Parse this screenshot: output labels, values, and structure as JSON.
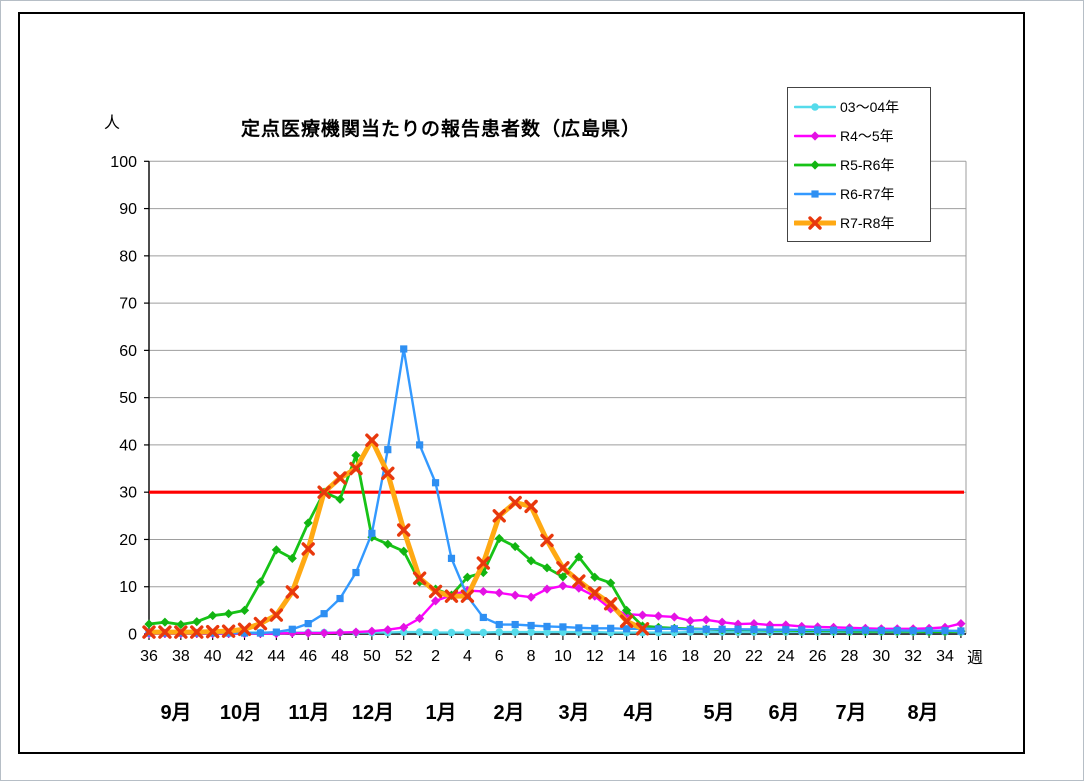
{
  "chart_data": {
    "type": "line",
    "title": "定点医療機関当たりの報告患者数（広島県）",
    "y_axis": {
      "label": "人",
      "min": 0,
      "max": 100,
      "step": 10,
      "grid": true
    },
    "x_axis": {
      "label": "週",
      "weeks": [
        36,
        37,
        38,
        39,
        40,
        41,
        42,
        43,
        44,
        45,
        46,
        47,
        48,
        49,
        50,
        51,
        52,
        1,
        2,
        3,
        4,
        5,
        6,
        7,
        8,
        9,
        10,
        11,
        12,
        13,
        14,
        15,
        16,
        17,
        18,
        19,
        20,
        21,
        22,
        23,
        24,
        25,
        26,
        27,
        28,
        29,
        30,
        31,
        32,
        33,
        34,
        35
      ],
      "labeled_every": 2,
      "months": [
        "9月",
        "10月",
        "11月",
        "12月",
        "1月",
        "2月",
        "3月",
        "4月",
        "5月",
        "6月",
        "7月",
        "8月"
      ]
    },
    "threshold": {
      "value": 30,
      "color": "#FF0000"
    },
    "legend_position": "top-right",
    "series": [
      {
        "name": "03〜04年",
        "color": "#55DBEB",
        "marker": "circle",
        "marker_color": "#55DBEB",
        "line_width": 2.4,
        "values": [
          0.3,
          0.3,
          0.3,
          0.3,
          0.3,
          0.3,
          0.3,
          0.3,
          0.3,
          0.3,
          0.3,
          0.3,
          0.3,
          0.3,
          0.3,
          0.3,
          0.4,
          0.4,
          0.3,
          0.3,
          0.3,
          0.3,
          0.4,
          0.4,
          0.4,
          0.4,
          0.4,
          0.4,
          0.4,
          0.3,
          0.3,
          0.3,
          0.3,
          0.3,
          0.4,
          0.4,
          0.4,
          0.4,
          0.4,
          0.4,
          0.4,
          0.4,
          0.4,
          0.4,
          0.4,
          0.4,
          0.4,
          0.4,
          0.4,
          0.4,
          0.4,
          0.4
        ]
      },
      {
        "name": "R4〜5年",
        "color": "#FF00FF",
        "marker": "diamond",
        "marker_color": "#E312E3",
        "line_width": 2.4,
        "values": [
          0.1,
          0.1,
          0.1,
          0.1,
          0.1,
          0.1,
          0.1,
          0.1,
          0.1,
          0.2,
          0.2,
          0.2,
          0.3,
          0.4,
          0.6,
          0.9,
          1.4,
          3.3,
          7.0,
          8.2,
          9.2,
          9.0,
          8.7,
          8.2,
          7.8,
          9.5,
          10.2,
          9.7,
          8.0,
          5.3,
          4.2,
          4.0,
          3.8,
          3.6,
          2.8,
          3.0,
          2.5,
          2.1,
          2.2,
          1.9,
          1.9,
          1.6,
          1.5,
          1.4,
          1.3,
          1.2,
          1.1,
          1.1,
          1.1,
          1.2,
          1.4,
          2.2
        ]
      },
      {
        "name": "R5-R6年",
        "color": "#17C317",
        "marker": "diamond",
        "marker_color": "#12B412",
        "line_width": 2.8,
        "values": [
          2.1,
          2.5,
          2.0,
          2.6,
          3.9,
          4.3,
          5.0,
          11.0,
          17.8,
          16.0,
          23.5,
          30.0,
          28.5,
          37.8,
          20.5,
          19.0,
          17.5,
          11.0,
          9.5,
          8.2,
          12.0,
          13.0,
          20.2,
          18.5,
          15.5,
          14.0,
          12.1,
          16.3,
          12.0,
          10.8,
          5.0,
          1.7,
          1.4,
          1.2,
          1.1,
          1.0,
          0.9,
          0.9,
          0.9,
          0.8,
          0.8,
          0.7,
          0.7,
          0.7,
          0.6,
          0.6,
          0.6,
          0.6,
          0.6,
          0.5,
          0.5,
          0.6
        ]
      },
      {
        "name": "R6-R7年",
        "color": "#3399FF",
        "marker": "square",
        "marker_color": "#2E8FF2",
        "line_width": 2.4,
        "values": [
          0.2,
          0.2,
          0.2,
          0.2,
          0.2,
          0.2,
          0.2,
          0.2,
          0.4,
          1.0,
          2.2,
          4.3,
          7.5,
          13.0,
          21.3,
          39.0,
          60.3,
          40.0,
          32.0,
          16.0,
          8.0,
          3.5,
          2.0,
          2.0,
          1.8,
          1.6,
          1.5,
          1.3,
          1.2,
          1.2,
          1.1,
          1.1,
          1.1,
          1.1,
          1.0,
          1.0,
          1.0,
          1.0,
          0.95,
          0.9,
          0.9,
          0.85,
          0.85,
          0.8,
          0.8,
          0.8,
          0.75,
          0.75,
          0.7,
          0.7,
          0.7,
          0.65
        ]
      },
      {
        "name": "R7-R8年",
        "color": "#FFA913",
        "marker": "x",
        "marker_color": "#E8380D",
        "line_width": 5,
        "values": [
          0.4,
          0.4,
          0.4,
          0.4,
          0.5,
          0.6,
          1.0,
          2.2,
          4.0,
          8.9,
          18.0,
          30.0,
          33.0,
          35.0,
          41.0,
          34.0,
          22.0,
          11.8,
          9.0,
          8.0,
          8.0,
          15.0,
          25.0,
          27.8,
          27.0,
          19.8,
          14.0,
          11.2,
          8.7,
          6.4,
          2.7,
          1.1,
          null,
          null,
          null,
          null,
          null,
          null,
          null,
          null,
          null,
          null,
          null,
          null,
          null,
          null,
          null,
          null,
          null,
          null,
          null,
          null
        ]
      }
    ]
  }
}
